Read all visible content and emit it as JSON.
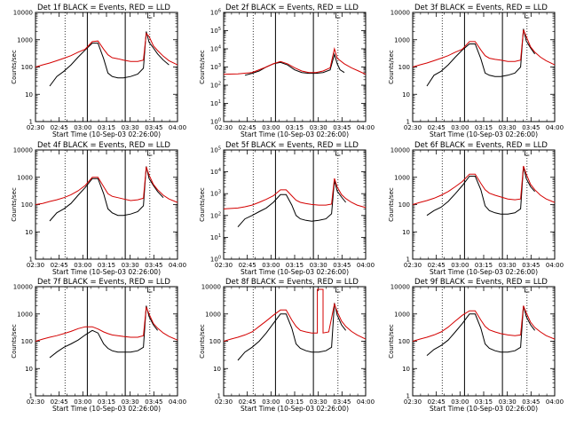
{
  "figure": {
    "title_suffix": "BLACK = Events, RED = LLD",
    "ylabel": "Counts/sec",
    "xlabel": "Start Time (10-Sep-03 02:26:00)",
    "x_ticks": [
      "02:30",
      "02:45",
      "03:00",
      "03:15",
      "03:30",
      "03:45",
      "04:00"
    ],
    "colors": {
      "events": "#000000",
      "lld": "#d40000"
    }
  },
  "chart_data": [
    {
      "type": "line",
      "title": "Det 1f BLACK = Events, RED = LLD",
      "xlabel": "Start Time (10-Sep-03 02:26:00)",
      "ylabel": "Counts/sec",
      "xlim": [
        0,
        100
      ],
      "ylim": [
        1,
        10000
      ],
      "yscale": "log",
      "y_ticks": [
        "1",
        "10",
        "100",
        "1000",
        "10000"
      ],
      "series": [
        {
          "name": "Events",
          "x": [
            10,
            15,
            20,
            25,
            30,
            35,
            40,
            44,
            48,
            51,
            54,
            58,
            62,
            67,
            72,
            76,
            78,
            80,
            83,
            86,
            90,
            94
          ],
          "y": [
            20,
            45,
            70,
            120,
            230,
            420,
            750,
            750,
            200,
            60,
            45,
            40,
            40,
            45,
            55,
            90,
            2000,
            800,
            500,
            300,
            180,
            120
          ]
        },
        {
          "name": "LLD",
          "x": [
            0,
            5,
            10,
            15,
            20,
            25,
            30,
            35,
            40,
            44,
            48,
            51,
            54,
            58,
            62,
            67,
            72,
            76,
            78,
            80,
            83,
            86,
            90,
            94,
            100
          ],
          "y": [
            100,
            120,
            140,
            170,
            210,
            260,
            350,
            450,
            850,
            900,
            450,
            280,
            220,
            200,
            180,
            160,
            160,
            180,
            1700,
            1300,
            600,
            400,
            250,
            170,
            120
          ]
        }
      ]
    },
    {
      "type": "line",
      "title": "Det 2f BLACK = Events, RED = LLD",
      "xlabel": "Start Time (10-Sep-03 02:26:00)",
      "ylabel": "Counts/sec",
      "xlim": [
        0,
        100
      ],
      "ylim": [
        1,
        1000000
      ],
      "yscale": "log",
      "y_ticks": [
        "10^0",
        "10^1",
        "10^2",
        "10^3",
        "10^4",
        "10^5",
        "10^6"
      ],
      "series": [
        {
          "name": "Events",
          "x": [
            15,
            20,
            25,
            30,
            35,
            40,
            45,
            50,
            55,
            60,
            65,
            70,
            75,
            78,
            80,
            82,
            85
          ],
          "y": [
            350,
            450,
            600,
            1000,
            1500,
            1800,
            1300,
            700,
            500,
            450,
            450,
            500,
            700,
            5000,
            1500,
            700,
            500
          ]
        },
        {
          "name": "LLD",
          "x": [
            0,
            10,
            20,
            30,
            35,
            40,
            45,
            50,
            55,
            60,
            65,
            70,
            75,
            78,
            80,
            85,
            90,
            95,
            100
          ],
          "y": [
            400,
            420,
            500,
            1000,
            1500,
            2000,
            1500,
            900,
            600,
            500,
            500,
            600,
            900,
            10000,
            3000,
            1500,
            900,
            600,
            400
          ]
        }
      ]
    },
    {
      "type": "line",
      "title": "Det 3f BLACK = Events, RED = LLD",
      "xlabel": "Start Time (10-Sep-03 02:26:00)",
      "ylabel": "Counts/sec",
      "xlim": [
        0,
        100
      ],
      "ylim": [
        1,
        10000
      ],
      "yscale": "log",
      "y_ticks": [
        "1",
        "10",
        "100",
        "1000",
        "10000"
      ],
      "series": [
        {
          "name": "Events",
          "x": [
            10,
            15,
            20,
            25,
            30,
            35,
            40,
            44,
            48,
            51,
            54,
            58,
            62,
            67,
            72,
            76,
            78,
            80,
            83,
            86
          ],
          "y": [
            20,
            50,
            70,
            120,
            230,
            420,
            700,
            700,
            200,
            60,
            50,
            45,
            45,
            50,
            60,
            100,
            2500,
            900,
            500,
            300
          ]
        },
        {
          "name": "LLD",
          "x": [
            0,
            5,
            10,
            15,
            20,
            25,
            30,
            35,
            40,
            44,
            48,
            51,
            54,
            58,
            62,
            67,
            72,
            76,
            78,
            80,
            83,
            86,
            90,
            94,
            100
          ],
          "y": [
            100,
            120,
            140,
            170,
            210,
            260,
            350,
            450,
            850,
            850,
            420,
            260,
            210,
            190,
            180,
            160,
            160,
            180,
            2300,
            1300,
            550,
            350,
            230,
            170,
            120
          ]
        }
      ]
    },
    {
      "type": "line",
      "title": "Det 4f BLACK = Events, RED = LLD",
      "xlabel": "Start Time (10-Sep-03 02:26:00)",
      "ylabel": "Counts/sec",
      "xlim": [
        0,
        100
      ],
      "ylim": [
        1,
        10000
      ],
      "yscale": "log",
      "y_ticks": [
        "1",
        "10",
        "100",
        "1000",
        "10000"
      ],
      "series": [
        {
          "name": "Events",
          "x": [
            10,
            15,
            20,
            25,
            30,
            35,
            40,
            44,
            48,
            51,
            54,
            58,
            62,
            67,
            72,
            76,
            78,
            80,
            83,
            86,
            90
          ],
          "y": [
            25,
            50,
            70,
            110,
            220,
            420,
            900,
            900,
            250,
            70,
            50,
            40,
            40,
            45,
            55,
            90,
            2500,
            900,
            500,
            300,
            180
          ]
        },
        {
          "name": "LLD",
          "x": [
            0,
            5,
            10,
            15,
            20,
            25,
            30,
            35,
            40,
            44,
            48,
            51,
            54,
            58,
            62,
            67,
            72,
            76,
            78,
            80,
            83,
            86,
            90,
            94,
            100
          ],
          "y": [
            100,
            110,
            130,
            150,
            180,
            230,
            320,
            500,
            1000,
            1000,
            450,
            250,
            200,
            180,
            160,
            140,
            150,
            170,
            2400,
            1200,
            550,
            350,
            220,
            160,
            120
          ]
        }
      ]
    },
    {
      "type": "line",
      "title": "Det 5f BLACK = Events, RED = LLD",
      "xlabel": "Start Time (10-Sep-03 02:26:00)",
      "ylabel": "Counts/sec",
      "xlim": [
        0,
        100
      ],
      "ylim": [
        1,
        100000
      ],
      "yscale": "log",
      "y_ticks": [
        "10^0",
        "10^1",
        "10^2",
        "10^3",
        "10^4",
        "10^5"
      ],
      "series": [
        {
          "name": "Events",
          "x": [
            10,
            15,
            20,
            25,
            30,
            35,
            40,
            44,
            48,
            51,
            54,
            58,
            62,
            67,
            72,
            76,
            78,
            80,
            83,
            86
          ],
          "y": [
            30,
            70,
            100,
            150,
            220,
            400,
            900,
            900,
            300,
            100,
            70,
            60,
            55,
            60,
            70,
            120,
            4000,
            1300,
            700,
            400
          ]
        },
        {
          "name": "LLD",
          "x": [
            0,
            5,
            10,
            15,
            20,
            25,
            30,
            35,
            40,
            44,
            48,
            51,
            54,
            58,
            62,
            67,
            72,
            76,
            78,
            80,
            83,
            86,
            90,
            94,
            100
          ],
          "y": [
            200,
            210,
            220,
            250,
            300,
            400,
            550,
            800,
            1500,
            1500,
            800,
            500,
            400,
            350,
            320,
            300,
            300,
            330,
            5000,
            2000,
            900,
            600,
            400,
            300,
            230
          ]
        }
      ]
    },
    {
      "type": "line",
      "title": "Det 6f BLACK = Events, RED = LLD",
      "xlabel": "Start Time (10-Sep-03 02:26:00)",
      "ylabel": "Counts/sec",
      "xlim": [
        0,
        100
      ],
      "ylim": [
        1,
        10000
      ],
      "yscale": "log",
      "y_ticks": [
        "1",
        "10",
        "100",
        "1000",
        "10000"
      ],
      "series": [
        {
          "name": "Events",
          "x": [
            10,
            15,
            20,
            25,
            30,
            35,
            40,
            44,
            48,
            51,
            54,
            58,
            62,
            67,
            72,
            76,
            78,
            80,
            83,
            86
          ],
          "y": [
            40,
            60,
            80,
            130,
            250,
            500,
            1100,
            1100,
            350,
            90,
            60,
            50,
            45,
            45,
            50,
            70,
            2500,
            900,
            450,
            300
          ]
        },
        {
          "name": "LLD",
          "x": [
            0,
            5,
            10,
            15,
            20,
            25,
            30,
            35,
            40,
            44,
            48,
            51,
            54,
            58,
            62,
            67,
            72,
            76,
            78,
            80,
            83,
            86,
            90,
            94,
            100
          ],
          "y": [
            100,
            120,
            140,
            170,
            220,
            300,
            450,
            700,
            1300,
            1300,
            600,
            350,
            260,
            220,
            190,
            160,
            150,
            160,
            2600,
            1300,
            550,
            350,
            220,
            160,
            120
          ]
        }
      ]
    },
    {
      "type": "line",
      "title": "Det 7f BLACK = Events, RED = LLD",
      "xlabel": "Start Time (10-Sep-03 02:26:00)",
      "ylabel": "Counts/sec",
      "xlim": [
        0,
        100
      ],
      "ylim": [
        1,
        10000
      ],
      "yscale": "log",
      "y_ticks": [
        "1",
        "10",
        "100",
        "1000",
        "10000"
      ],
      "series": [
        {
          "name": "Events",
          "x": [
            10,
            15,
            20,
            25,
            30,
            35,
            40,
            44,
            48,
            51,
            54,
            58,
            62,
            67,
            72,
            76,
            78,
            80,
            83,
            86
          ],
          "y": [
            25,
            40,
            60,
            80,
            110,
            170,
            250,
            200,
            80,
            55,
            45,
            40,
            40,
            40,
            45,
            60,
            2000,
            800,
            400,
            250
          ]
        },
        {
          "name": "LLD",
          "x": [
            0,
            5,
            10,
            15,
            20,
            25,
            30,
            35,
            40,
            44,
            48,
            51,
            54,
            58,
            62,
            67,
            72,
            76,
            78,
            80,
            83,
            86,
            90,
            94,
            100
          ],
          "y": [
            100,
            120,
            140,
            160,
            190,
            230,
            290,
            340,
            340,
            280,
            220,
            190,
            170,
            160,
            150,
            140,
            140,
            160,
            1800,
            1000,
            450,
            300,
            200,
            150,
            110
          ]
        }
      ]
    },
    {
      "type": "line",
      "title": "Det 8f BLACK = Events, RED = LLD",
      "xlabel": "Start Time (10-Sep-03 02:26:00)",
      "ylabel": "Counts/sec",
      "xlim": [
        0,
        100
      ],
      "ylim": [
        1,
        10000
      ],
      "yscale": "log",
      "y_ticks": [
        "1",
        "10",
        "100",
        "1000",
        "10000"
      ],
      "series": [
        {
          "name": "Events",
          "x": [
            10,
            15,
            20,
            25,
            30,
            35,
            40,
            44,
            48,
            51,
            54,
            58,
            62,
            67,
            72,
            76,
            78,
            80,
            83,
            86
          ],
          "y": [
            20,
            40,
            60,
            100,
            200,
            450,
            1000,
            1000,
            300,
            80,
            55,
            45,
            40,
            40,
            45,
            60,
            2500,
            900,
            400,
            250
          ]
        },
        {
          "name": "LLD",
          "x": [
            0,
            5,
            10,
            15,
            20,
            25,
            30,
            35,
            40,
            44,
            48,
            51,
            54,
            58,
            62,
            66,
            66,
            70,
            70,
            74,
            78,
            80,
            83,
            86,
            90,
            94,
            100
          ],
          "y": [
            100,
            120,
            140,
            170,
            220,
            350,
            550,
            900,
            1400,
            1400,
            600,
            350,
            250,
            220,
            200,
            200,
            8000,
            8000,
            200,
            220,
            2300,
            1200,
            550,
            350,
            230,
            170,
            120
          ]
        }
      ]
    },
    {
      "type": "line",
      "title": "Det 9f BLACK = Events, RED = LLD",
      "xlabel": "Start Time (10-Sep-03 02:26:00)",
      "ylabel": "Counts/sec",
      "xlim": [
        0,
        100
      ],
      "ylim": [
        1,
        10000
      ],
      "yscale": "log",
      "y_ticks": [
        "1",
        "10",
        "100",
        "1000",
        "10000"
      ],
      "series": [
        {
          "name": "Events",
          "x": [
            10,
            15,
            20,
            25,
            30,
            35,
            40,
            44,
            48,
            51,
            54,
            58,
            62,
            67,
            72,
            76,
            78,
            80,
            83,
            86
          ],
          "y": [
            30,
            50,
            70,
            110,
            220,
            450,
            1000,
            1000,
            300,
            80,
            55,
            45,
            40,
            40,
            45,
            60,
            2000,
            800,
            400,
            250
          ]
        },
        {
          "name": "LLD",
          "x": [
            0,
            5,
            10,
            15,
            20,
            25,
            30,
            35,
            40,
            44,
            48,
            51,
            54,
            58,
            62,
            67,
            72,
            76,
            78,
            80,
            83,
            86,
            90,
            94,
            100
          ],
          "y": [
            100,
            120,
            140,
            170,
            220,
            330,
            550,
            900,
            1300,
            1300,
            600,
            350,
            260,
            220,
            190,
            170,
            160,
            170,
            2000,
            1100,
            500,
            320,
            220,
            160,
            120
          ]
        }
      ]
    }
  ]
}
